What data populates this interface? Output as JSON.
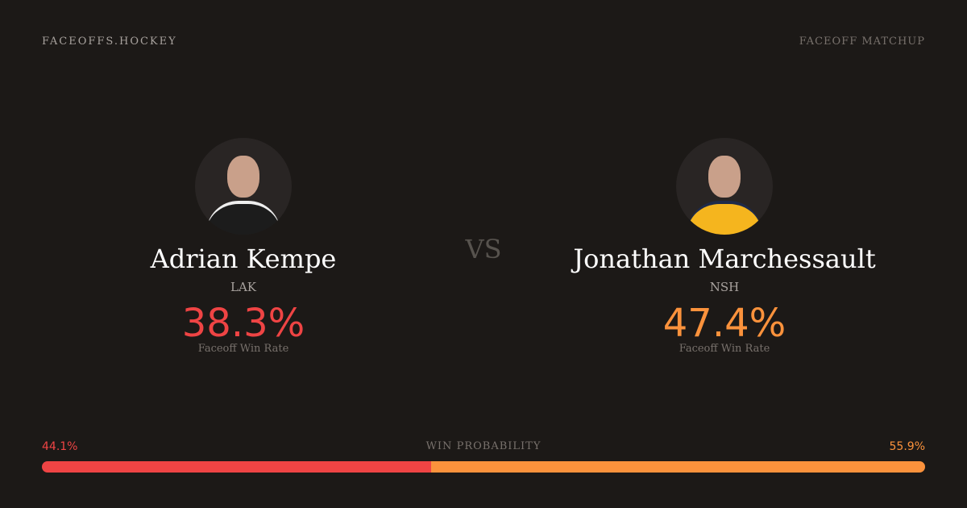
{
  "header": {
    "brand": "FACEOFFS.HOCKEY",
    "tag": "FACEOFF MATCHUP"
  },
  "vs": "VS",
  "players": [
    {
      "name": "Adrian Kempe",
      "team": "LAK",
      "faceoff_pct": "38.3%",
      "label": "Faceoff Win Rate",
      "color": "#ef4444",
      "jersey": "#1c1c1c"
    },
    {
      "name": "Jonathan Marchessault",
      "team": "NSH",
      "faceoff_pct": "47.4%",
      "label": "Faceoff Win Rate",
      "color": "#fb923c",
      "jersey": "#f5b51e"
    }
  ],
  "win_probability": {
    "label": "WIN PROBABILITY",
    "left": "44.1%",
    "right": "55.9%",
    "left_value": 44.1,
    "right_value": 55.9
  }
}
